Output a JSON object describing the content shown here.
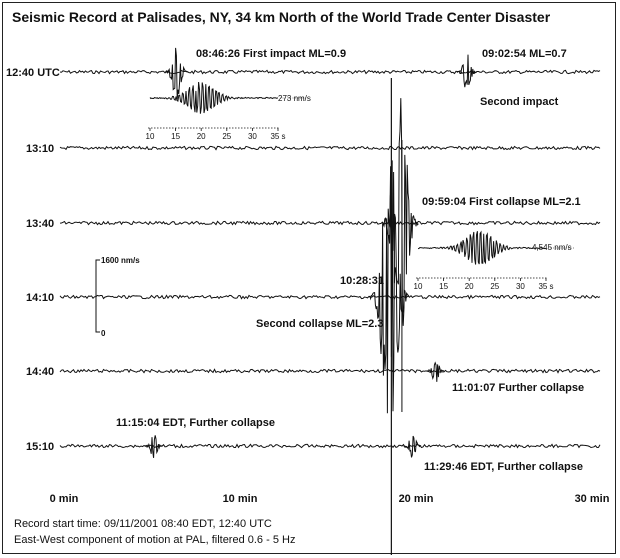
{
  "chart_data": {
    "type": "line",
    "title": "Seismic Record at Palisades, NY, 34 km North of the World Trade Center Disaster",
    "trace_labels": [
      "12:40 UTC",
      "13:10",
      "13:40",
      "14:10",
      "14:40",
      "15:10"
    ],
    "x_ticks": [
      "0 min",
      "10 min",
      "20 min",
      "30 min"
    ],
    "x_tick_values": [
      0,
      10,
      20,
      30
    ],
    "xlim": [
      0,
      30
    ],
    "events": [
      {
        "label": "08:46:26 First impact ML=0.9",
        "trace": 0,
        "minute": 6.4,
        "magnitude": 0.9
      },
      {
        "label": "09:02:54 ML=0.7",
        "trace": 0,
        "minute": 22.9,
        "magnitude": 0.7
      },
      {
        "label": "Second impact",
        "trace": 0,
        "minute": 22.9
      },
      {
        "label": "09:59:04 First collapse ML=2.1",
        "trace": 2,
        "minute": 19.1,
        "magnitude": 2.1
      },
      {
        "label": "10:28:31",
        "trace": 3,
        "minute": 18.5
      },
      {
        "label": "Second collapse ML=2.3",
        "trace": 3,
        "minute": 18.5,
        "magnitude": 2.3
      },
      {
        "label": "11:01:07 Further collapse",
        "trace": 4,
        "minute": 21.1
      },
      {
        "label": "11:15:04 EDT, Further collapse",
        "trace": 5,
        "minute": 5.1
      },
      {
        "label": "11:29:46 EDT, Further collapse",
        "trace": 5,
        "minute": 19.8
      }
    ],
    "scale_bar": {
      "top_label": "1600 nm/s",
      "bottom_label": "0"
    },
    "insets": [
      {
        "amplitude_label": "273 nm/s",
        "axis_ticks": [
          "10",
          "15",
          "20",
          "25",
          "30",
          "35 s"
        ],
        "axis_values": [
          10,
          15,
          20,
          25,
          30,
          35
        ],
        "peak_time_s": 20,
        "peak_amplitude_nm_s": 273
      },
      {
        "amplitude_label": "4,545 nm/s",
        "axis_ticks": [
          "10",
          "15",
          "20",
          "25",
          "30",
          "35 s"
        ],
        "axis_values": [
          10,
          15,
          20,
          25,
          30,
          35
        ],
        "peak_time_s": 22,
        "peak_amplitude_nm_s": 4545
      }
    ],
    "notes": [
      "Record start time: 09/11/2001 08:40 EDT, 12:40 UTC",
      "East-West component of motion at PAL, filtered 0.6 - 5 Hz"
    ]
  }
}
